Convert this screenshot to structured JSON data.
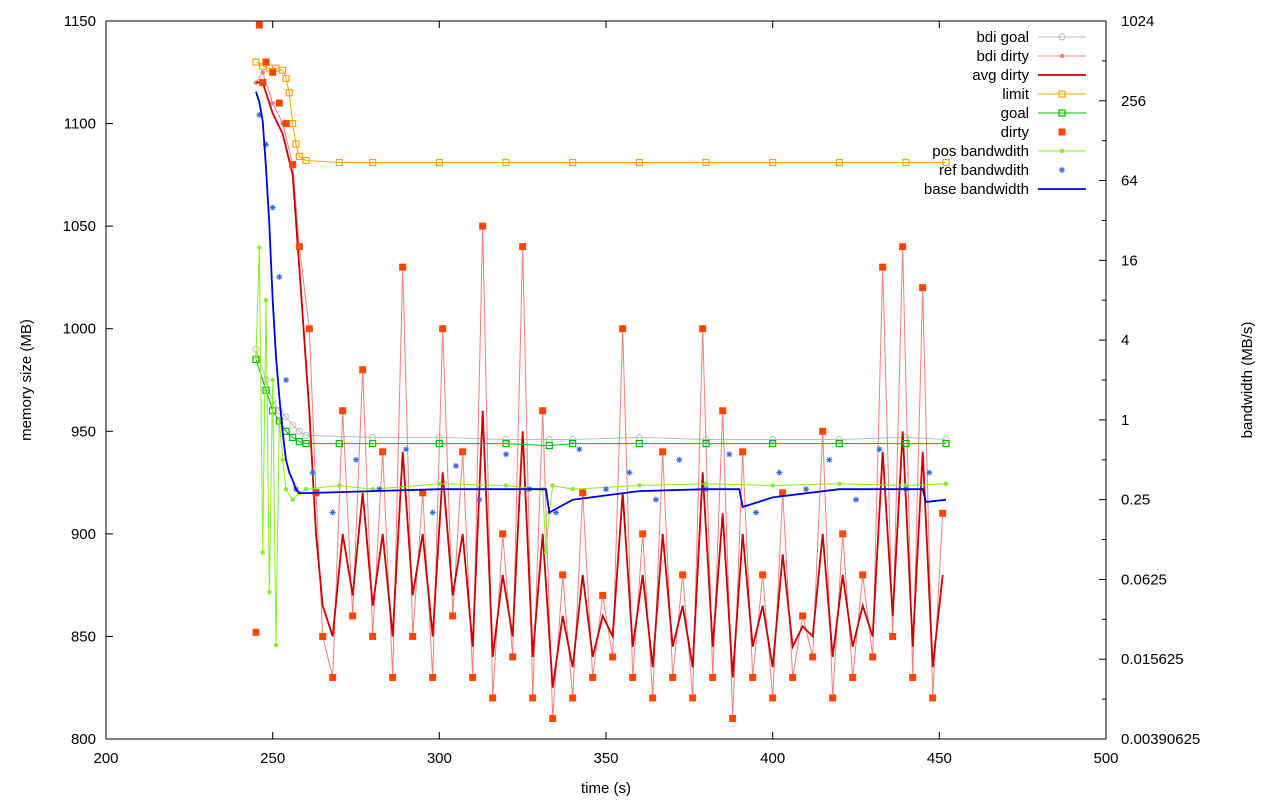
{
  "chart_data": {
    "type": "scatter",
    "title": "",
    "xlabel": "time (s)",
    "ylabel": "memory size (MB)",
    "y2label": "bandwidth (MB/s)",
    "xlim": [
      200,
      500
    ],
    "ylim": [
      800,
      1150
    ],
    "y2lim": [
      0.00390625,
      1024
    ],
    "y2_scale": "log2",
    "grid": false,
    "legend_position": "top-right",
    "x_ticks": [
      "200",
      "250",
      "300",
      "350",
      "400",
      "450",
      "500"
    ],
    "y_ticks": [
      "800",
      "850",
      "900",
      "950",
      "1000",
      "1050",
      "1100",
      "1150"
    ],
    "y2_ticks": [
      "0.00390625",
      "0.015625",
      "0.0625",
      "0.25",
      "1",
      "4",
      "16",
      "64",
      "256",
      "1024"
    ],
    "series": [
      {
        "name": "bdi goal",
        "axis": "y",
        "style": "linespoints",
        "marker": "circle-open",
        "color": "#bdbdbd",
        "x": [
          245,
          248,
          250,
          252,
          254,
          256,
          258,
          260,
          280,
          300,
          320,
          333,
          340,
          360,
          380,
          400,
          420,
          440,
          452
        ],
        "y": [
          990,
          975,
          965,
          960,
          957,
          953,
          950,
          948,
          947,
          947,
          946,
          946,
          946,
          947,
          946,
          946,
          946,
          947,
          946
        ]
      },
      {
        "name": "bdi dirty",
        "axis": "y",
        "style": "linespoints",
        "marker": "dot",
        "color": "#f08080",
        "x": [
          245,
          247,
          250,
          253,
          256,
          258,
          261,
          263,
          265,
          268,
          271,
          274,
          277,
          280,
          283,
          286,
          289,
          292,
          295,
          298,
          301,
          304,
          307,
          310,
          313,
          316,
          319,
          322,
          325,
          328,
          331,
          334,
          337,
          340,
          343,
          346,
          349,
          352,
          355,
          358,
          361,
          364,
          367,
          370,
          373,
          376,
          379,
          382,
          385,
          388,
          391,
          394,
          397,
          400,
          403,
          406,
          409,
          412,
          415,
          418,
          421,
          424,
          427,
          430,
          433,
          436,
          439,
          442,
          445,
          448,
          451
        ],
        "y": [
          1120,
          1125,
          1110,
          1100,
          1080,
          1040,
          1000,
          920,
          850,
          830,
          960,
          860,
          980,
          850,
          940,
          830,
          1030,
          850,
          920,
          830,
          1000,
          860,
          940,
          830,
          1050,
          820,
          900,
          840,
          1040,
          820,
          960,
          810,
          880,
          820,
          920,
          830,
          870,
          840,
          1000,
          830,
          900,
          820,
          940,
          830,
          880,
          820,
          1000,
          830,
          960,
          810,
          940,
          830,
          880,
          820,
          920,
          830,
          860,
          840,
          950,
          820,
          900,
          830,
          880,
          840,
          1030,
          850,
          1040,
          830,
          1020,
          820,
          910
        ]
      },
      {
        "name": "avg dirty",
        "axis": "y",
        "style": "lines",
        "color": "#cc0000",
        "x": [
          245,
          247,
          250,
          253,
          256,
          258,
          261,
          263,
          265,
          268,
          271,
          274,
          277,
          280,
          283,
          286,
          289,
          292,
          295,
          298,
          301,
          304,
          307,
          310,
          313,
          316,
          319,
          322,
          325,
          328,
          331,
          334,
          337,
          340,
          343,
          346,
          349,
          352,
          355,
          358,
          361,
          364,
          367,
          370,
          373,
          376,
          379,
          382,
          385,
          388,
          391,
          394,
          397,
          400,
          403,
          406,
          409,
          412,
          415,
          418,
          421,
          424,
          427,
          430,
          433,
          436,
          439,
          442,
          445,
          448,
          451
        ],
        "y": [
          1120,
          1120,
          1105,
          1095,
          1075,
          1030,
          960,
          900,
          865,
          850,
          900,
          870,
          920,
          865,
          900,
          850,
          940,
          870,
          900,
          850,
          930,
          870,
          900,
          845,
          960,
          840,
          880,
          850,
          950,
          840,
          900,
          825,
          860,
          835,
          880,
          840,
          860,
          850,
          920,
          845,
          880,
          835,
          900,
          845,
          865,
          835,
          930,
          845,
          910,
          830,
          900,
          845,
          865,
          835,
          890,
          845,
          855,
          850,
          900,
          840,
          880,
          845,
          865,
          850,
          940,
          860,
          950,
          845,
          940,
          835,
          880
        ]
      },
      {
        "name": "limit",
        "axis": "y",
        "style": "linespoints",
        "marker": "square-open",
        "color": "#ffa500",
        "x": [
          245,
          247,
          249,
          251,
          253,
          254,
          255,
          256,
          257,
          258,
          260,
          270,
          280,
          300,
          320,
          340,
          360,
          380,
          400,
          420,
          440,
          452
        ],
        "y": [
          1130,
          1128,
          1127,
          1127,
          1126,
          1122,
          1115,
          1100,
          1090,
          1084,
          1082,
          1081,
          1081,
          1081,
          1081,
          1081,
          1081,
          1081,
          1081,
          1081,
          1081,
          1081
        ]
      },
      {
        "name": "goal",
        "axis": "y",
        "style": "linespoints",
        "marker": "square-open",
        "color": "#00bb00",
        "x": [
          245,
          248,
          250,
          252,
          254,
          256,
          258,
          260,
          270,
          280,
          300,
          320,
          333,
          340,
          360,
          380,
          400,
          420,
          440,
          452
        ],
        "y": [
          985,
          970,
          960,
          955,
          950,
          947,
          945,
          944,
          944,
          944,
          944,
          944,
          943,
          944,
          944,
          944,
          944,
          944,
          944,
          944
        ]
      },
      {
        "name": "dirty",
        "axis": "y",
        "style": "points",
        "marker": "square-filled",
        "color": "#ff4500",
        "x": [
          245,
          246,
          247,
          248,
          250,
          252,
          254,
          256,
          258,
          261,
          263,
          265,
          268,
          271,
          274,
          277,
          280,
          283,
          286,
          289,
          292,
          295,
          298,
          301,
          304,
          307,
          310,
          313,
          316,
          319,
          322,
          325,
          328,
          331,
          334,
          337,
          340,
          343,
          346,
          349,
          352,
          355,
          358,
          361,
          364,
          367,
          370,
          373,
          376,
          379,
          382,
          385,
          388,
          391,
          394,
          397,
          400,
          403,
          406,
          409,
          412,
          415,
          418,
          421,
          424,
          427,
          430,
          433,
          436,
          439,
          442,
          445,
          448,
          451
        ],
        "y": [
          852,
          1148,
          1120,
          1130,
          1125,
          1110,
          1100,
          1080,
          1040,
          1000,
          920,
          850,
          830,
          960,
          860,
          980,
          850,
          940,
          830,
          1030,
          850,
          920,
          830,
          1000,
          860,
          940,
          830,
          1050,
          820,
          900,
          840,
          1040,
          820,
          960,
          810,
          880,
          820,
          920,
          830,
          870,
          840,
          1000,
          830,
          900,
          820,
          940,
          830,
          880,
          820,
          1000,
          830,
          960,
          810,
          940,
          830,
          880,
          820,
          920,
          830,
          860,
          840,
          950,
          820,
          900,
          830,
          880,
          840,
          1030,
          850,
          1040,
          830,
          1020,
          820,
          910
        ]
      },
      {
        "name": "pos bandwdith",
        "axis": "y2",
        "style": "linespoints",
        "marker": "dot",
        "color": "#88ee22",
        "x": [
          245,
          246,
          247,
          248,
          249,
          250,
          251,
          252,
          253,
          254,
          256,
          258,
          260,
          270,
          280,
          300,
          320,
          331,
          332,
          333,
          334,
          340,
          360,
          380,
          400,
          420,
          440,
          452
        ],
        "y": [
          3,
          20,
          0.1,
          8,
          0.05,
          2,
          0.02,
          1,
          0.5,
          0.3,
          0.25,
          0.28,
          0.3,
          0.32,
          0.3,
          0.33,
          0.32,
          0.3,
          0.1,
          0.2,
          0.32,
          0.3,
          0.32,
          0.33,
          0.32,
          0.33,
          0.32,
          0.33
        ]
      },
      {
        "name": "ref bandwdith",
        "axis": "y2",
        "style": "points",
        "marker": "star",
        "color": "#3366dd",
        "x": [
          246,
          248,
          250,
          252,
          254,
          257,
          262,
          268,
          275,
          282,
          290,
          298,
          305,
          312,
          320,
          327,
          335,
          342,
          350,
          357,
          365,
          372,
          380,
          387,
          395,
          402,
          410,
          417,
          425,
          432,
          440,
          447
        ],
        "y": [
          200,
          120,
          40,
          12,
          2,
          0.3,
          0.4,
          0.2,
          0.5,
          0.3,
          0.6,
          0.2,
          0.45,
          0.25,
          0.55,
          0.3,
          0.2,
          0.6,
          0.3,
          0.4,
          0.25,
          0.5,
          0.3,
          0.55,
          0.2,
          0.4,
          0.3,
          0.5,
          0.25,
          0.6,
          0.3,
          0.4
        ]
      },
      {
        "name": "base bandwidth",
        "axis": "y2",
        "style": "lines",
        "color": "#0000dd",
        "x": [
          245,
          246,
          247,
          248,
          249,
          250,
          251,
          252,
          253,
          254,
          255,
          256,
          257,
          258,
          260,
          280,
          300,
          320,
          332,
          333,
          340,
          360,
          380,
          390,
          391,
          400,
          420,
          440,
          445,
          446,
          452
        ],
        "y": [
          300,
          250,
          180,
          80,
          30,
          8,
          3,
          1.5,
          0.8,
          0.5,
          0.4,
          0.35,
          0.3,
          0.28,
          0.28,
          0.29,
          0.3,
          0.3,
          0.3,
          0.2,
          0.25,
          0.29,
          0.3,
          0.3,
          0.22,
          0.26,
          0.3,
          0.3,
          0.3,
          0.24,
          0.25
        ]
      }
    ]
  }
}
